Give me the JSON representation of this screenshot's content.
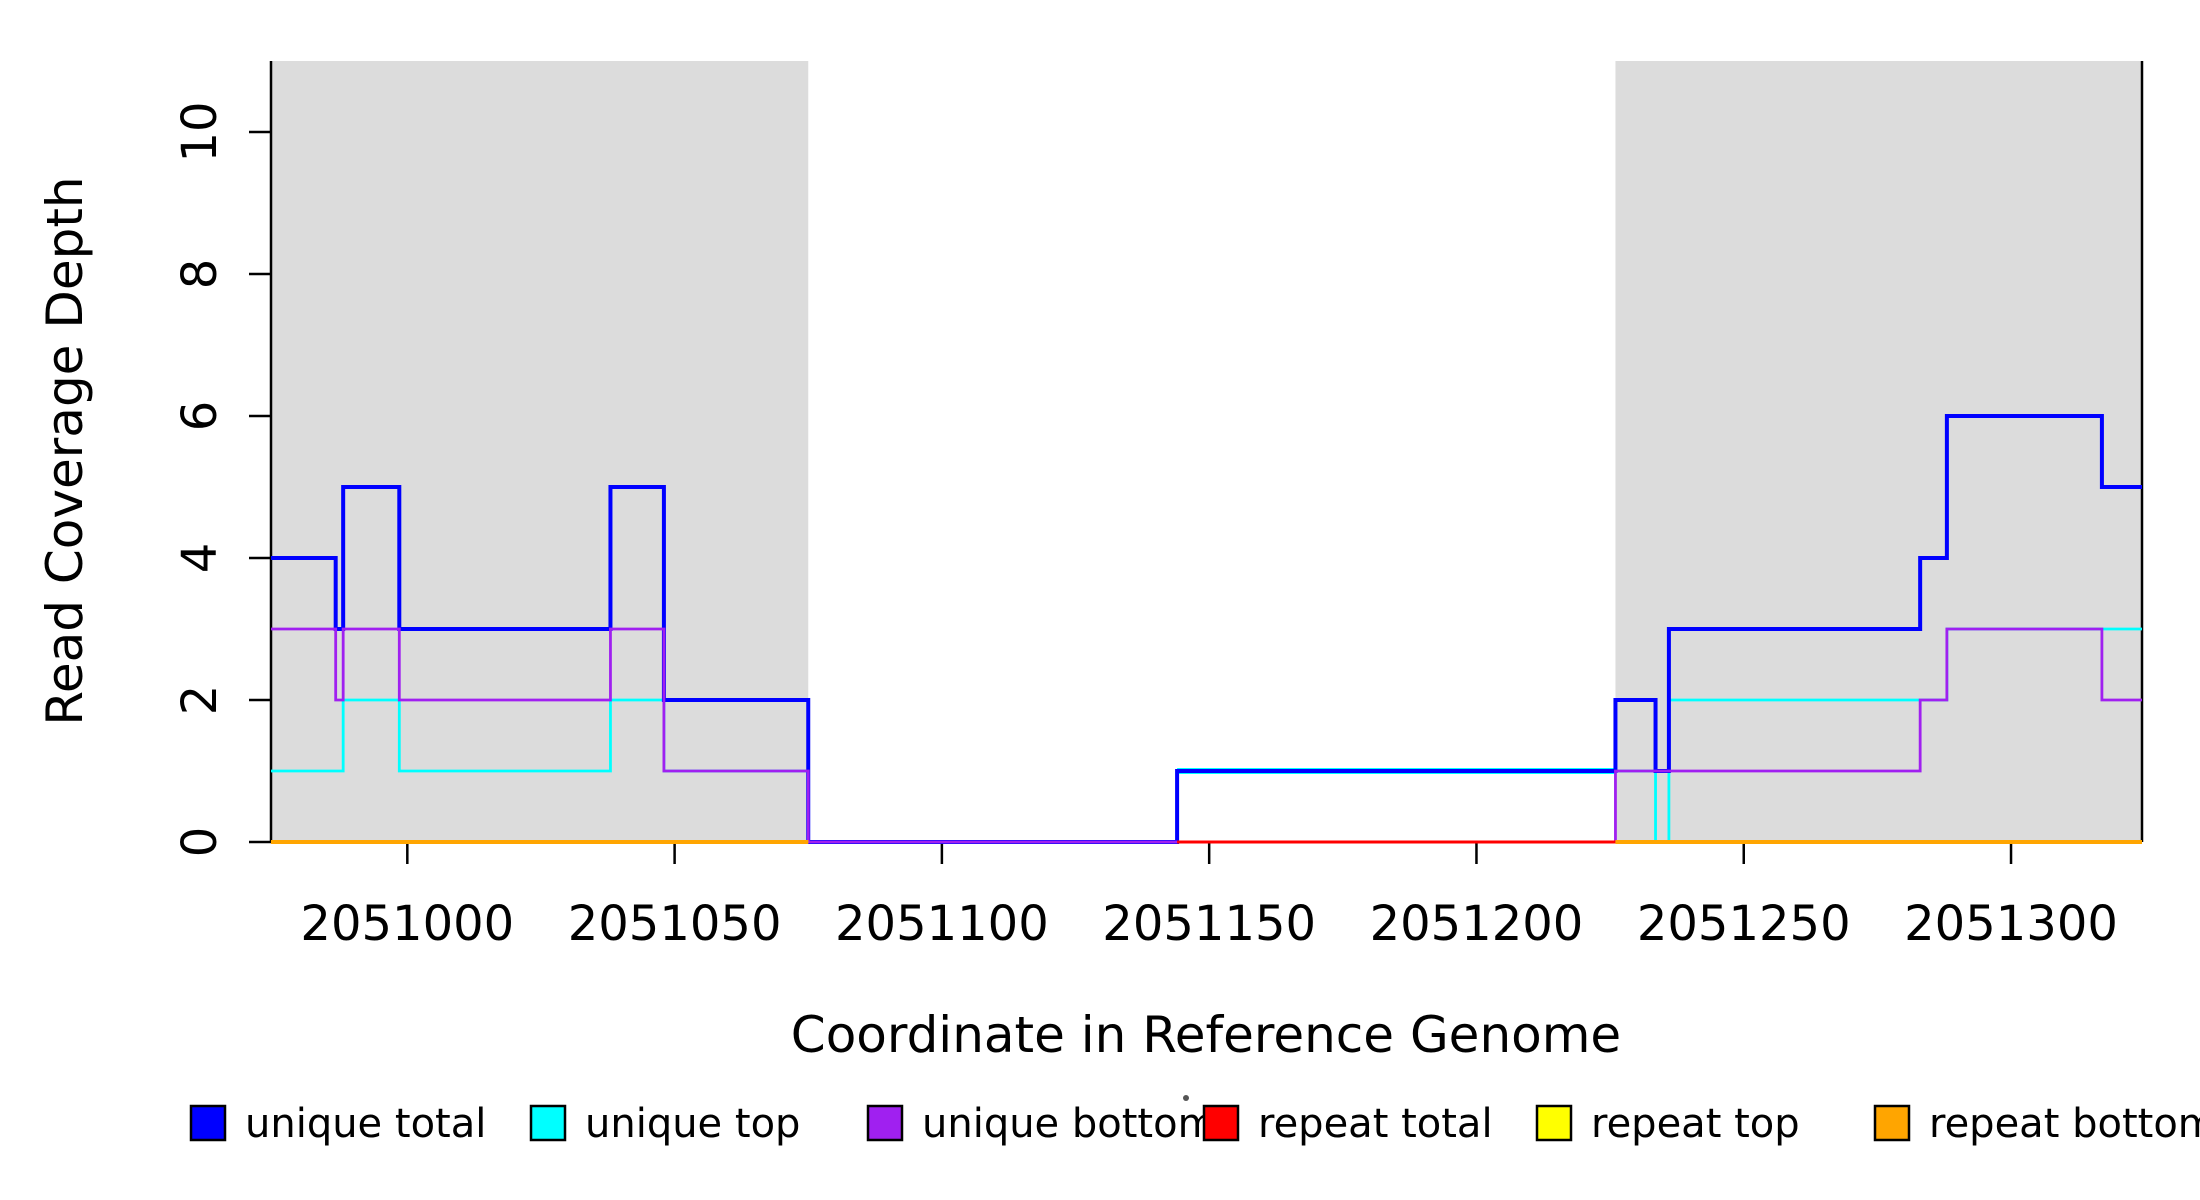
{
  "axes": {
    "xlabel": "Coordinate in Reference Genome",
    "ylabel": "Read Coverage Depth"
  },
  "chart_data": {
    "type": "step-line",
    "title": "",
    "xlabel": "Coordinate in Reference Genome",
    "ylabel": "Read Coverage Depth",
    "xlim": [
      2050974.5,
      2051324.5
    ],
    "ylim": [
      0,
      11
    ],
    "grid": false,
    "xticks": [
      {
        "v": 2051000,
        "label": "2051000"
      },
      {
        "v": 2051050,
        "label": "2051050"
      },
      {
        "v": 2051100,
        "label": "2051100"
      },
      {
        "v": 2051150,
        "label": "2051150"
      },
      {
        "v": 2051200,
        "label": "2051200"
      },
      {
        "v": 2051250,
        "label": "2051250"
      },
      {
        "v": 2051300,
        "label": "2051300"
      }
    ],
    "yticks": [
      {
        "v": 0,
        "label": "0"
      },
      {
        "v": 2,
        "label": "2"
      },
      {
        "v": 4,
        "label": "4"
      },
      {
        "v": 6,
        "label": "6"
      },
      {
        "v": 8,
        "label": "8"
      },
      {
        "v": 10,
        "label": "10"
      }
    ],
    "shade_color": "#DCDCDC",
    "shaded_regions": [
      {
        "name": "repeat-region-left",
        "x0": 2050974.5,
        "x1": 2051075
      },
      {
        "name": "repeat-region-right",
        "x0": 2051226,
        "x1": 2051324.5
      }
    ],
    "series_draw_order": [
      {
        "name": "unique top",
        "color": "#00FFFF",
        "lw": 2.8,
        "segments": [
          {
            "steps": [
              [
                2050974.5,
                1
              ],
              [
                2050988,
                2
              ],
              [
                2050998.5,
                1
              ],
              [
                2051038,
                2
              ],
              [
                2051048,
                1
              ],
              [
                2051075,
                0
              ],
              [
                2051144,
                1
              ],
              [
                2051233.5,
                0
              ],
              [
                2051236,
                2
              ],
              [
                2051288,
                3
              ]
            ],
            "end": 2051324.5
          },
          {
            "steps": [
              [
                2051144,
                1
              ]
            ],
            "end": 2051226,
            "lw": 6
          }
        ]
      },
      {
        "name": "unique total",
        "color": "#0000FF",
        "lw": 4,
        "segments": [
          {
            "steps": [
              [
                2050974.5,
                4
              ],
              [
                2050986.6,
                3
              ],
              [
                2050988,
                5
              ],
              [
                2050998.5,
                3
              ],
              [
                2051038,
                5
              ],
              [
                2051048,
                2
              ],
              [
                2051075,
                0
              ],
              [
                2051144,
                1
              ],
              [
                2051226,
                2
              ],
              [
                2051233.5,
                1
              ],
              [
                2051236,
                3
              ],
              [
                2051283,
                4
              ],
              [
                2051288,
                6
              ],
              [
                2051317,
                5
              ]
            ],
            "end": 2051324.5
          }
        ]
      },
      {
        "name": "unique bottom",
        "color": "#A020F0",
        "lw": 2.8,
        "segments": [
          {
            "steps": [
              [
                2050974.5,
                3
              ],
              [
                2050986.6,
                2
              ],
              [
                2050988,
                3
              ],
              [
                2050998.5,
                2
              ],
              [
                2051038,
                3
              ],
              [
                2051048,
                1
              ],
              [
                2051075,
                0
              ],
              [
                2051226,
                1
              ],
              [
                2051283,
                2
              ],
              [
                2051288,
                3
              ],
              [
                2051317,
                2
              ]
            ],
            "end": 2051324.5
          }
        ]
      },
      {
        "name": "repeat total",
        "color": "#FF0000",
        "lw": 3,
        "segments": [
          {
            "steps": [
              [
                2051144,
                0
              ]
            ],
            "end": 2051226
          }
        ]
      },
      {
        "name": "repeat top",
        "color": "#FFFF00",
        "lw": 3,
        "segments": [
          {
            "steps": [
              [
                2050974.5,
                0
              ]
            ],
            "end": 2051075
          },
          {
            "steps": [
              [
                2051226,
                0
              ]
            ],
            "end": 2051324.5
          }
        ]
      },
      {
        "name": "repeat bottom",
        "color": "#FFA500",
        "lw": 4,
        "segments": [
          {
            "steps": [
              [
                2050974.5,
                0
              ]
            ],
            "end": 2051075
          },
          {
            "steps": [
              [
                2051226,
                0
              ]
            ],
            "end": 2051324.5
          }
        ]
      }
    ]
  },
  "legend": {
    "entries": [
      {
        "label": "unique total",
        "color": "#0000FF"
      },
      {
        "label": "unique top",
        "color": "#00FFFF"
      },
      {
        "label": "unique bottom",
        "color": "#A020F0"
      },
      {
        "label": "repeat total",
        "color": "#FF0000"
      },
      {
        "label": "repeat top",
        "color": "#FFFF00"
      },
      {
        "label": "repeat bottom",
        "color": "#FFA500"
      }
    ]
  }
}
